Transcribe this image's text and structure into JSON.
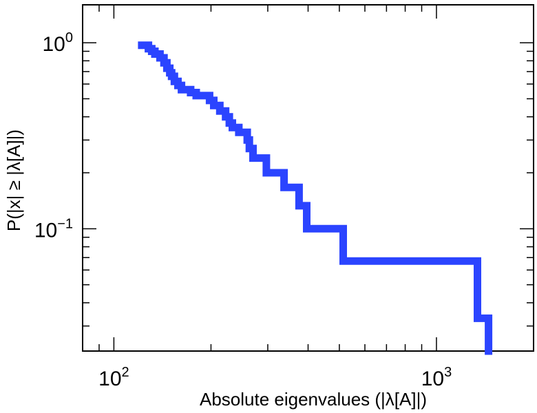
{
  "chart_data": {
    "type": "line",
    "title": "",
    "xlabel": "Absolute eigenvalues (|λ[A]|)",
    "ylabel": "P(|x| ≥ |λ[A]|)",
    "x_scale": "log",
    "y_scale": "log",
    "xlim": [
      80,
      2000
    ],
    "ylim": [
      0.022,
      1.6
    ],
    "grid": false,
    "legend": "none",
    "x_ticks": [
      {
        "value": 100,
        "base": "10",
        "exp": "2"
      },
      {
        "value": 1000,
        "base": "10",
        "exp": "3"
      }
    ],
    "y_ticks": [
      {
        "value": 1,
        "base": "10",
        "exp": "0"
      },
      {
        "value": 0.1,
        "base": "10",
        "exp": "−1"
      }
    ],
    "series": [
      {
        "color": "#2b44ff",
        "style": "step",
        "points": [
          [
            122,
            0.97
          ],
          [
            128,
            0.93
          ],
          [
            131,
            0.9
          ],
          [
            134,
            0.87
          ],
          [
            139,
            0.83
          ],
          [
            143,
            0.78
          ],
          [
            146,
            0.73
          ],
          [
            149,
            0.69
          ],
          [
            151,
            0.66
          ],
          [
            154,
            0.62
          ],
          [
            158,
            0.59
          ],
          [
            162,
            0.56
          ],
          [
            173,
            0.54
          ],
          [
            180,
            0.52
          ],
          [
            198,
            0.49
          ],
          [
            204,
            0.46
          ],
          [
            213,
            0.43
          ],
          [
            222,
            0.4
          ],
          [
            228,
            0.37
          ],
          [
            233,
            0.35
          ],
          [
            244,
            0.33
          ],
          [
            259,
            0.3
          ],
          [
            263,
            0.27
          ],
          [
            270,
            0.24
          ],
          [
            297,
            0.2
          ],
          [
            337,
            0.167
          ],
          [
            375,
            0.133
          ],
          [
            396,
            0.1
          ],
          [
            514,
            0.067
          ],
          [
            1340,
            0.033
          ],
          [
            1450,
            0.022
          ]
        ]
      }
    ]
  }
}
